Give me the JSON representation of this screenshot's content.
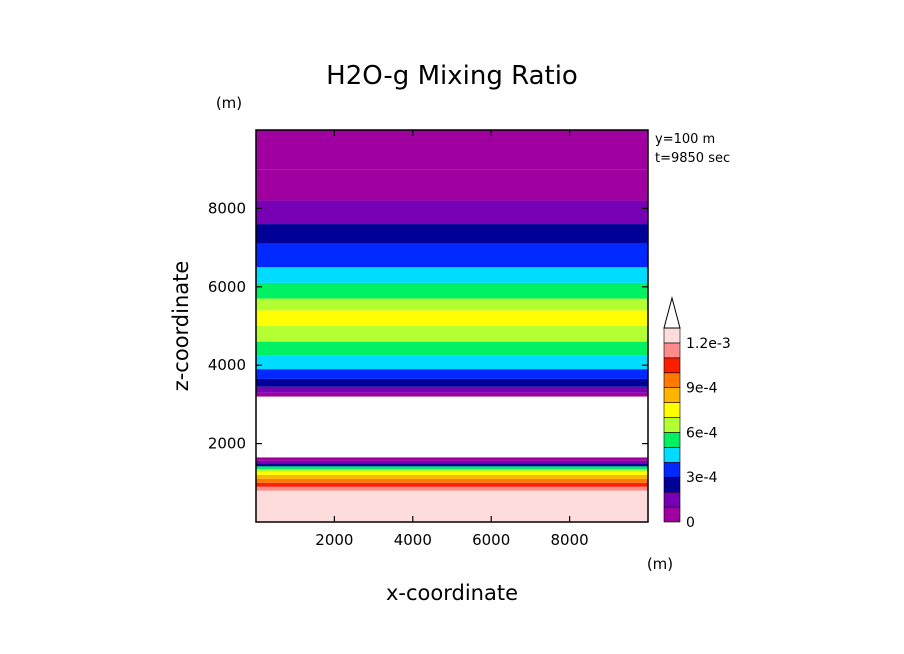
{
  "chart_data": {
    "type": "contour",
    "title": "H2O-g Mixing Ratio",
    "xlabel": "x-coordinate",
    "ylabel": "z-coordinate",
    "x_unit": "(m)",
    "y_unit": "(m)",
    "annotations": [
      "y=100 m",
      "t=9850 sec"
    ],
    "xlim": [
      0,
      10000
    ],
    "ylim": [
      0,
      10000
    ],
    "x_ticks": [
      2000,
      4000,
      6000,
      8000
    ],
    "y_ticks": [
      2000,
      4000,
      6000,
      8000
    ],
    "colorbar": {
      "levels": [
        0,
        0.0001,
        0.0002,
        0.0003,
        0.0004,
        0.0005,
        0.0006,
        0.0007,
        0.0008,
        0.0009,
        0.001,
        0.0011,
        0.0012
      ],
      "tick_labels": [
        "1.2e-3",
        "9e-4",
        "6e-4",
        "3e-4",
        "0"
      ],
      "tick_values": [
        0.0012,
        0.0009,
        0.0006,
        0.0003,
        0
      ],
      "colors": [
        "#a000a0",
        "#7800b4",
        "#000096",
        "#0028ff",
        "#00dcff",
        "#00f064",
        "#b4ff32",
        "#ffff00",
        "#ffb400",
        "#ff7800",
        "#ff1e00",
        "#ff8c8c",
        "#ffdcdc"
      ],
      "extend": "max"
    },
    "profile": [
      {
        "z": 0,
        "value": 0.00125
      },
      {
        "z": 600,
        "value": 0.00125
      },
      {
        "z": 800,
        "value": 0.00115
      },
      {
        "z": 900,
        "value": 0.00105
      },
      {
        "z": 1000,
        "value": 0.00095
      },
      {
        "z": 1100,
        "value": 0.00085
      },
      {
        "z": 1200,
        "value": 0.00075
      },
      {
        "z": 1280,
        "value": 0.00065
      },
      {
        "z": 1350,
        "value": 0.00055
      },
      {
        "z": 1420,
        "value": 0.00025
      },
      {
        "z": 1500,
        "value": 0.00015
      },
      {
        "z": 1560,
        "value": 5e-05
      },
      {
        "z": 1650,
        "value": null
      },
      {
        "z": 3000,
        "value": null
      },
      {
        "z": 3200,
        "value": 5e-05
      },
      {
        "z": 3300,
        "value": 0.00015
      },
      {
        "z": 3450,
        "value": 0.00025
      },
      {
        "z": 3650,
        "value": 0.00035
      },
      {
        "z": 3900,
        "value": 0.00045
      },
      {
        "z": 4250,
        "value": 0.00055
      },
      {
        "z": 4600,
        "value": 0.00065
      },
      {
        "z": 5000,
        "value": 0.00075
      },
      {
        "z": 5400,
        "value": 0.00065
      },
      {
        "z": 5700,
        "value": 0.00055
      },
      {
        "z": 6100,
        "value": 0.00045
      },
      {
        "z": 6500,
        "value": 0.00035
      },
      {
        "z": 7100,
        "value": 0.00025
      },
      {
        "z": 7600,
        "value": 0.00015
      },
      {
        "z": 8200,
        "value": 5e-05
      },
      {
        "z": 9000,
        "value": 0.0
      }
    ]
  }
}
